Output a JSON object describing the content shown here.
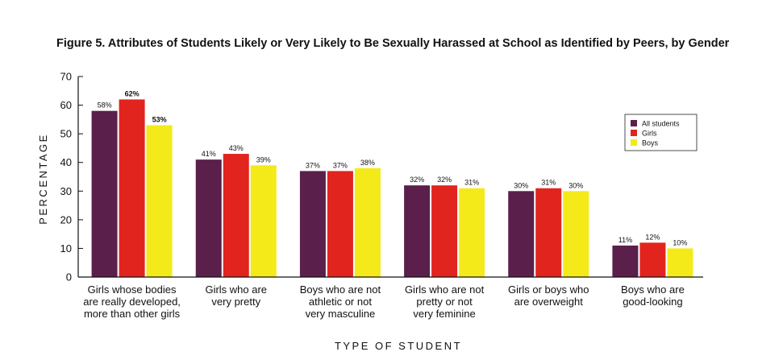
{
  "chart_data": {
    "type": "bar",
    "title": "Figure 5. Attributes of Students Likely or Very Likely to Be Sexually Harassed at School as Identified by Peers, by Gender",
    "xlabel": "TYPE OF STUDENT",
    "ylabel": "PERCENTAGE",
    "ylim": [
      0,
      70
    ],
    "yticks": [
      "0",
      "10",
      "20",
      "30",
      "40",
      "50",
      "60",
      "70"
    ],
    "categories": [
      [
        "Girls whose bodies",
        "are really developed,",
        "more than other girls"
      ],
      [
        "Girls who are",
        "very pretty"
      ],
      [
        "Boys who are not",
        "athletic or not",
        "very masculine"
      ],
      [
        "Girls who are not",
        "pretty or not",
        "very feminine"
      ],
      [
        "Girls or boys who",
        "are overweight"
      ],
      [
        "Boys who are",
        "good-looking"
      ]
    ],
    "series": [
      {
        "name": "All students",
        "color": "#5b1f4b",
        "values": [
          58,
          41,
          37,
          32,
          30,
          11
        ],
        "labels": [
          "58%",
          "41%",
          "37%",
          "32%",
          "30%",
          "11%"
        ]
      },
      {
        "name": "Girls",
        "color": "#e2241f",
        "values": [
          62,
          43,
          37,
          32,
          31,
          12
        ],
        "labels": [
          "62%",
          "43%",
          "37%",
          "32%",
          "31%",
          "12%"
        ]
      },
      {
        "name": "Boys",
        "color": "#f4ea19",
        "values": [
          53,
          39,
          38,
          31,
          30,
          10
        ],
        "labels": [
          "53%",
          "39%",
          "38%",
          "31%",
          "30%",
          "10%"
        ]
      }
    ],
    "bold_labels": [
      "62%",
      "53%"
    ],
    "legend_position": "right",
    "grid": false
  }
}
